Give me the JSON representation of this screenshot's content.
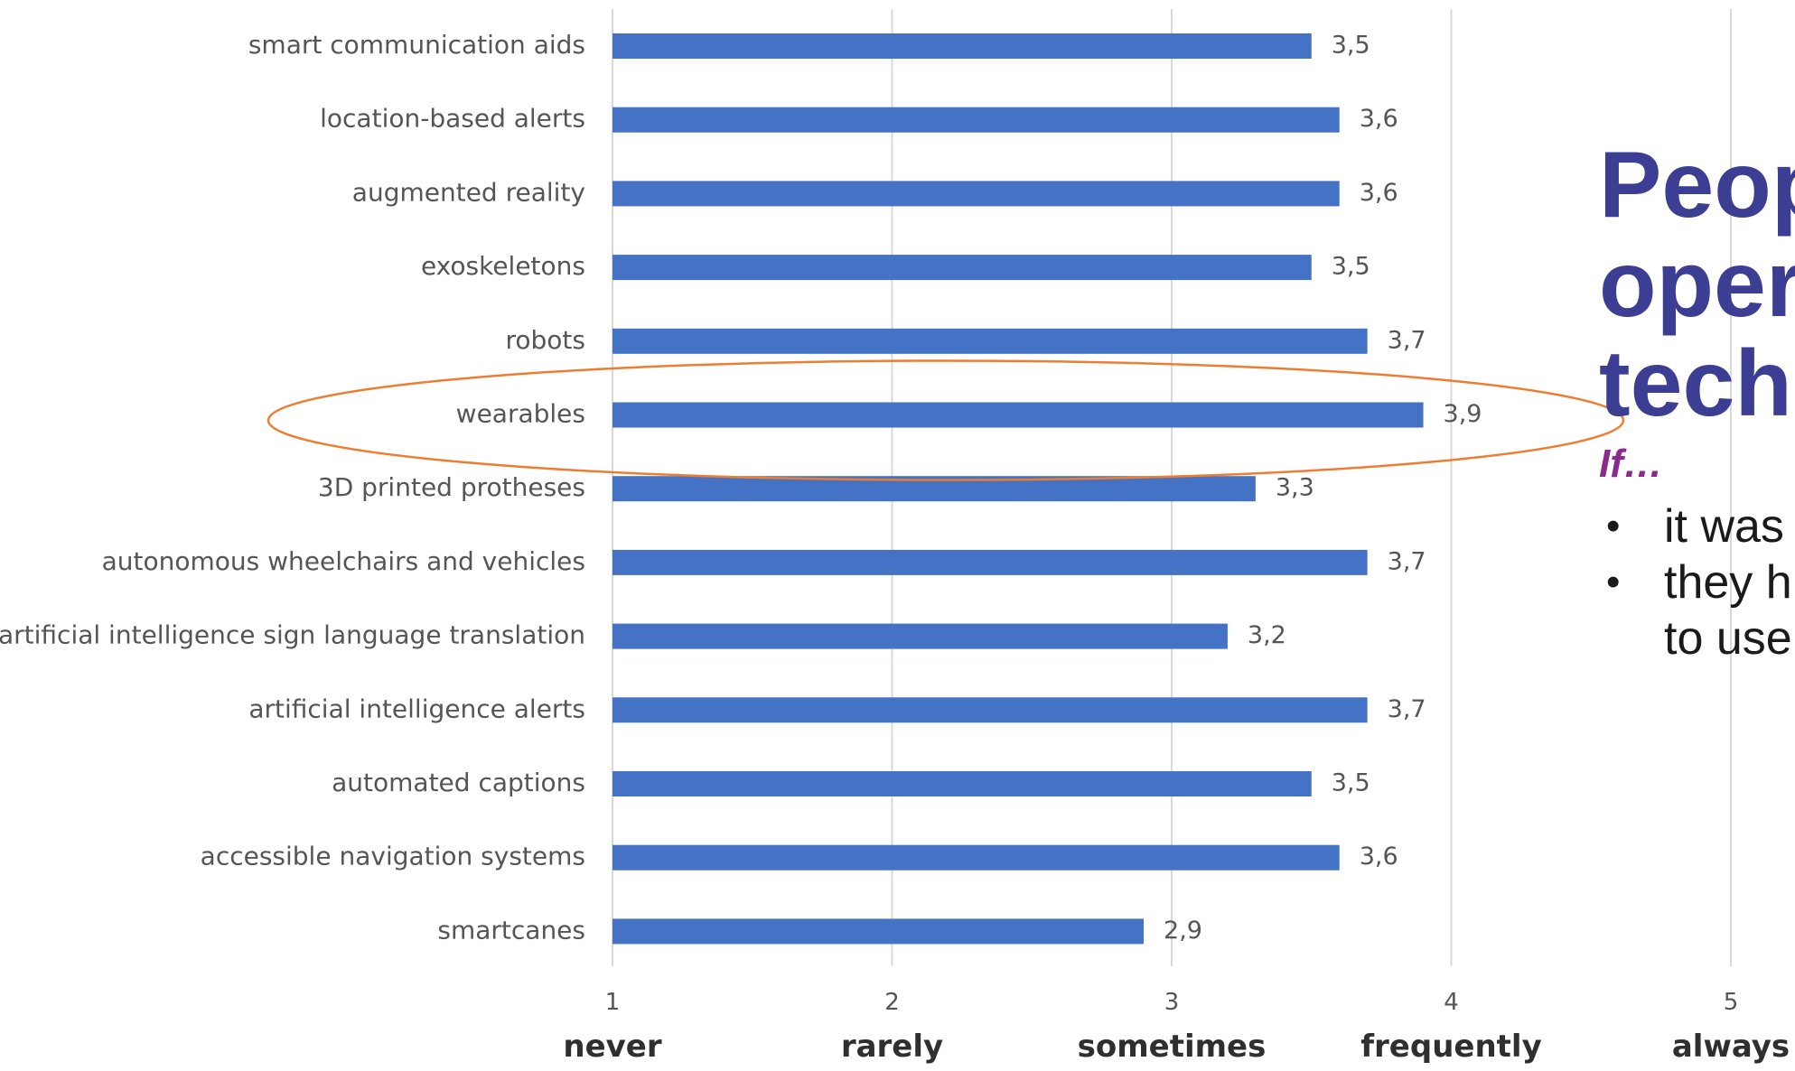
{
  "chart_data": {
    "type": "bar",
    "orientation": "horizontal",
    "categories": [
      "smart communication aids",
      "location-based alerts",
      "augmented reality",
      "exoskeletons",
      "robots",
      "wearables",
      "3D printed protheses",
      "autonomous wheelchairs and vehicles",
      "artificial intelligence sign language translation",
      "artificial intelligence alerts",
      "automated captions",
      "accessible navigation systems",
      "smartcanes"
    ],
    "values": [
      3.5,
      3.6,
      3.6,
      3.5,
      3.7,
      3.9,
      3.3,
      3.7,
      3.2,
      3.7,
      3.5,
      3.6,
      2.9
    ],
    "value_labels": [
      "3,5",
      "3,6",
      "3,6",
      "3,5",
      "3,7",
      "3,9",
      "3,3",
      "3,7",
      "3,2",
      "3,7",
      "3,5",
      "3,6",
      "2,9"
    ],
    "xlim": [
      1,
      5
    ],
    "ticks": [
      1,
      2,
      3,
      4,
      5
    ],
    "tick_words": [
      "never",
      "rarely",
      "sometimes",
      "frequently",
      "always"
    ],
    "highlighted_category": "wearables",
    "grid": true,
    "bar_color": "#4472c4",
    "highlight_color": "#ed7d31"
  },
  "side_text": {
    "headline_lines": [
      "Peop",
      "oper",
      "tech"
    ],
    "condition": "If…",
    "bullets": [
      {
        "lines": [
          "it was"
        ]
      },
      {
        "lines": [
          "they h",
          "to use"
        ]
      }
    ]
  }
}
